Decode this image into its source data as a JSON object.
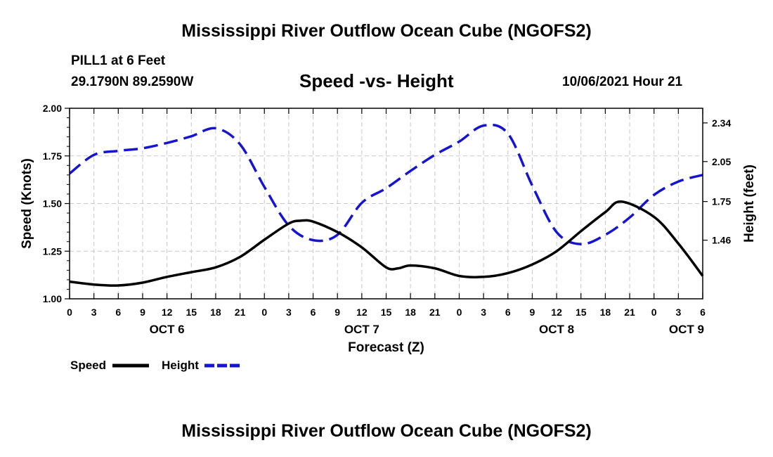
{
  "header": {
    "main_title": "Mississippi River Outflow Ocean Cube (NGOFS2)",
    "station_name": "PILL1 at 6 Feet",
    "coordinates": "29.1790N  89.2590W",
    "chart_title": "Speed -vs- Height",
    "datetime": "10/06/2021 Hour 21",
    "footer_title": "Mississippi River Outflow Ocean Cube (NGOFS2)"
  },
  "chart_data": {
    "type": "line",
    "title": "Speed -vs- Height",
    "xlabel": "Forecast (Z)",
    "ylabel": "Speed (Knots)",
    "y2label": "Height (feet)",
    "grid": true,
    "xlim": [
      0,
      78
    ],
    "ylim": [
      1.0,
      2.0
    ],
    "y2lim": [
      1.02,
      2.45
    ],
    "x_ticks": [
      0,
      3,
      6,
      9,
      12,
      15,
      18,
      21,
      24,
      27,
      30,
      33,
      36,
      39,
      42,
      45,
      48,
      51,
      54,
      57,
      60,
      63,
      66,
      69,
      72,
      75,
      78
    ],
    "x_tick_labels": [
      "0",
      "3",
      "6",
      "9",
      "12",
      "15",
      "18",
      "21",
      "0",
      "3",
      "6",
      "9",
      "12",
      "15",
      "18",
      "21",
      "0",
      "3",
      "6",
      "9",
      "12",
      "15",
      "18",
      "21",
      "0",
      "3",
      "6"
    ],
    "day_labels": [
      {
        "x": 12,
        "label": "OCT 6"
      },
      {
        "x": 36,
        "label": "OCT 7"
      },
      {
        "x": 60,
        "label": "OCT 8"
      },
      {
        "x": 76,
        "label": "OCT 9"
      }
    ],
    "y_ticks": [
      1.0,
      1.25,
      1.5,
      1.75,
      2.0
    ],
    "y_tick_labels": [
      "1.00",
      "1.25",
      "1.50",
      "1.75",
      "2.00"
    ],
    "y2_ticks": [
      1.46,
      1.75,
      2.05,
      2.34
    ],
    "y2_tick_labels": [
      "1.46",
      "1.75",
      "2.05",
      "2.34"
    ],
    "series": [
      {
        "name": "Speed",
        "axis": "left",
        "color": "#000000",
        "dashed": false,
        "x": [
          0,
          3,
          6,
          9,
          12,
          15,
          18,
          21,
          24,
          27,
          28.5,
          30,
          33,
          36,
          39,
          40.5,
          42,
          45,
          48,
          51,
          54,
          57,
          60,
          63,
          66,
          68,
          72,
          75,
          78
        ],
        "y": [
          1.09,
          1.075,
          1.07,
          1.085,
          1.115,
          1.14,
          1.165,
          1.22,
          1.31,
          1.395,
          1.41,
          1.405,
          1.35,
          1.27,
          1.165,
          1.16,
          1.175,
          1.16,
          1.12,
          1.115,
          1.135,
          1.18,
          1.25,
          1.355,
          1.455,
          1.51,
          1.43,
          1.29,
          1.12
        ]
      },
      {
        "name": "Height",
        "axis": "right",
        "color": "#1414d2",
        "dashed": true,
        "x": [
          0,
          3,
          6,
          9,
          12,
          15,
          18,
          21,
          24,
          27,
          30,
          33,
          36,
          39,
          42,
          45,
          48,
          51,
          54,
          57,
          60,
          63,
          66,
          69,
          72,
          75,
          78
        ],
        "y": [
          1.96,
          2.1,
          2.13,
          2.15,
          2.19,
          2.24,
          2.3,
          2.18,
          1.86,
          1.57,
          1.46,
          1.5,
          1.74,
          1.85,
          1.98,
          2.1,
          2.2,
          2.32,
          2.26,
          1.87,
          1.52,
          1.43,
          1.5,
          1.63,
          1.8,
          1.9,
          1.95
        ]
      }
    ]
  },
  "legend": {
    "speed_label": "Speed",
    "height_label": "Height"
  }
}
